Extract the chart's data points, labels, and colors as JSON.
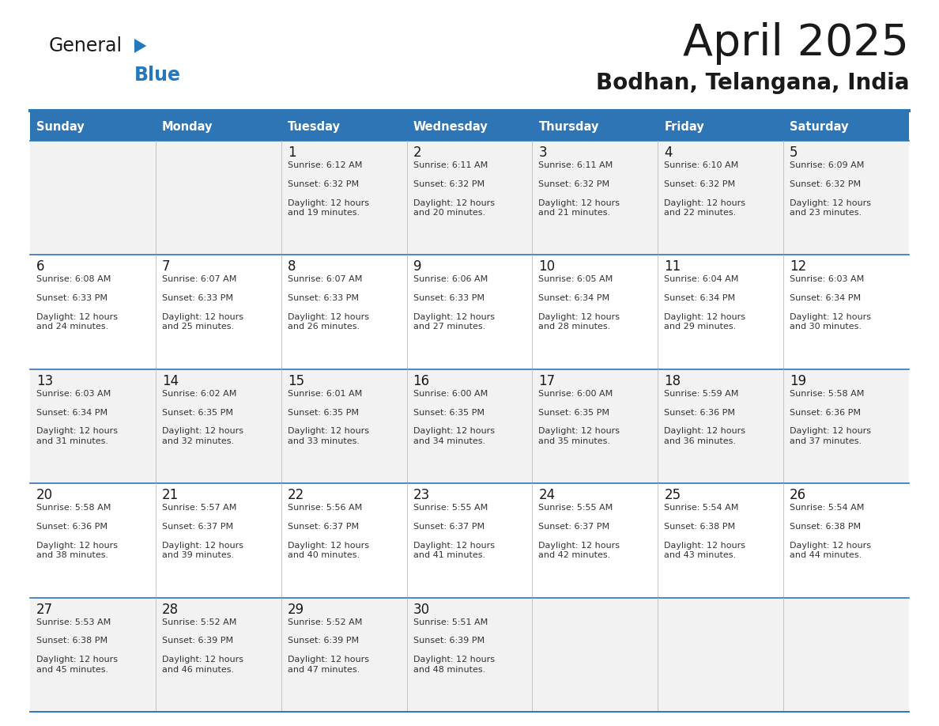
{
  "title": "April 2025",
  "subtitle": "Bodhan, Telangana, India",
  "header_bg_color": "#2E75B6",
  "header_text_color": "#FFFFFF",
  "row_bg_color_odd": "#F2F2F2",
  "row_bg_color_even": "#FFFFFF",
  "border_color": "#2E75B6",
  "text_color": "#333333",
  "days_of_week": [
    "Sunday",
    "Monday",
    "Tuesday",
    "Wednesday",
    "Thursday",
    "Friday",
    "Saturday"
  ],
  "logo_color1": "#1a1a1a",
  "logo_color2": "#2479BE",
  "weeks": [
    [
      {
        "day": "",
        "sunrise": "",
        "sunset": "",
        "daylight": ""
      },
      {
        "day": "",
        "sunrise": "",
        "sunset": "",
        "daylight": ""
      },
      {
        "day": "1",
        "sunrise": "6:12 AM",
        "sunset": "6:32 PM",
        "daylight": "12 hours\nand 19 minutes."
      },
      {
        "day": "2",
        "sunrise": "6:11 AM",
        "sunset": "6:32 PM",
        "daylight": "12 hours\nand 20 minutes."
      },
      {
        "day": "3",
        "sunrise": "6:11 AM",
        "sunset": "6:32 PM",
        "daylight": "12 hours\nand 21 minutes."
      },
      {
        "day": "4",
        "sunrise": "6:10 AM",
        "sunset": "6:32 PM",
        "daylight": "12 hours\nand 22 minutes."
      },
      {
        "day": "5",
        "sunrise": "6:09 AM",
        "sunset": "6:32 PM",
        "daylight": "12 hours\nand 23 minutes."
      }
    ],
    [
      {
        "day": "6",
        "sunrise": "6:08 AM",
        "sunset": "6:33 PM",
        "daylight": "12 hours\nand 24 minutes."
      },
      {
        "day": "7",
        "sunrise": "6:07 AM",
        "sunset": "6:33 PM",
        "daylight": "12 hours\nand 25 minutes."
      },
      {
        "day": "8",
        "sunrise": "6:07 AM",
        "sunset": "6:33 PM",
        "daylight": "12 hours\nand 26 minutes."
      },
      {
        "day": "9",
        "sunrise": "6:06 AM",
        "sunset": "6:33 PM",
        "daylight": "12 hours\nand 27 minutes."
      },
      {
        "day": "10",
        "sunrise": "6:05 AM",
        "sunset": "6:34 PM",
        "daylight": "12 hours\nand 28 minutes."
      },
      {
        "day": "11",
        "sunrise": "6:04 AM",
        "sunset": "6:34 PM",
        "daylight": "12 hours\nand 29 minutes."
      },
      {
        "day": "12",
        "sunrise": "6:03 AM",
        "sunset": "6:34 PM",
        "daylight": "12 hours\nand 30 minutes."
      }
    ],
    [
      {
        "day": "13",
        "sunrise": "6:03 AM",
        "sunset": "6:34 PM",
        "daylight": "12 hours\nand 31 minutes."
      },
      {
        "day": "14",
        "sunrise": "6:02 AM",
        "sunset": "6:35 PM",
        "daylight": "12 hours\nand 32 minutes."
      },
      {
        "day": "15",
        "sunrise": "6:01 AM",
        "sunset": "6:35 PM",
        "daylight": "12 hours\nand 33 minutes."
      },
      {
        "day": "16",
        "sunrise": "6:00 AM",
        "sunset": "6:35 PM",
        "daylight": "12 hours\nand 34 minutes."
      },
      {
        "day": "17",
        "sunrise": "6:00 AM",
        "sunset": "6:35 PM",
        "daylight": "12 hours\nand 35 minutes."
      },
      {
        "day": "18",
        "sunrise": "5:59 AM",
        "sunset": "6:36 PM",
        "daylight": "12 hours\nand 36 minutes."
      },
      {
        "day": "19",
        "sunrise": "5:58 AM",
        "sunset": "6:36 PM",
        "daylight": "12 hours\nand 37 minutes."
      }
    ],
    [
      {
        "day": "20",
        "sunrise": "5:58 AM",
        "sunset": "6:36 PM",
        "daylight": "12 hours\nand 38 minutes."
      },
      {
        "day": "21",
        "sunrise": "5:57 AM",
        "sunset": "6:37 PM",
        "daylight": "12 hours\nand 39 minutes."
      },
      {
        "day": "22",
        "sunrise": "5:56 AM",
        "sunset": "6:37 PM",
        "daylight": "12 hours\nand 40 minutes."
      },
      {
        "day": "23",
        "sunrise": "5:55 AM",
        "sunset": "6:37 PM",
        "daylight": "12 hours\nand 41 minutes."
      },
      {
        "day": "24",
        "sunrise": "5:55 AM",
        "sunset": "6:37 PM",
        "daylight": "12 hours\nand 42 minutes."
      },
      {
        "day": "25",
        "sunrise": "5:54 AM",
        "sunset": "6:38 PM",
        "daylight": "12 hours\nand 43 minutes."
      },
      {
        "day": "26",
        "sunrise": "5:54 AM",
        "sunset": "6:38 PM",
        "daylight": "12 hours\nand 44 minutes."
      }
    ],
    [
      {
        "day": "27",
        "sunrise": "5:53 AM",
        "sunset": "6:38 PM",
        "daylight": "12 hours\nand 45 minutes."
      },
      {
        "day": "28",
        "sunrise": "5:52 AM",
        "sunset": "6:39 PM",
        "daylight": "12 hours\nand 46 minutes."
      },
      {
        "day": "29",
        "sunrise": "5:52 AM",
        "sunset": "6:39 PM",
        "daylight": "12 hours\nand 47 minutes."
      },
      {
        "day": "30",
        "sunrise": "5:51 AM",
        "sunset": "6:39 PM",
        "daylight": "12 hours\nand 48 minutes."
      },
      {
        "day": "",
        "sunrise": "",
        "sunset": "",
        "daylight": ""
      },
      {
        "day": "",
        "sunrise": "",
        "sunset": "",
        "daylight": ""
      },
      {
        "day": "",
        "sunrise": "",
        "sunset": "",
        "daylight": ""
      }
    ]
  ]
}
